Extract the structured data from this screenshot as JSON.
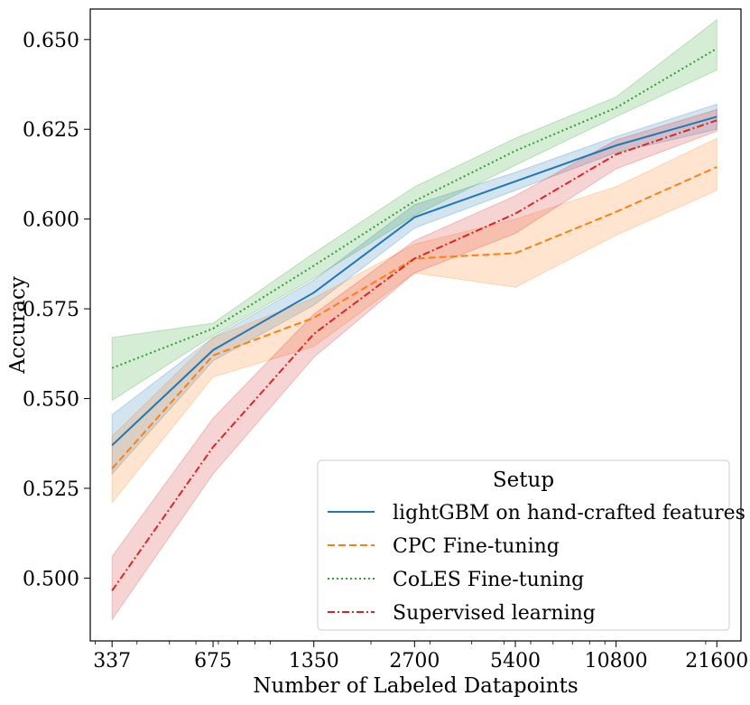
{
  "chart_data": {
    "type": "line",
    "xlabel": "Number of Labeled Datapoints",
    "ylabel": "Accuracy",
    "x_scale": "log",
    "x": [
      337,
      675,
      1350,
      2700,
      5400,
      10800,
      21600
    ],
    "x_tick_labels": [
      "337",
      "675",
      "1350",
      "2700",
      "5400",
      "10800",
      "21600"
    ],
    "xlim": [
      290,
      25500
    ],
    "ylim": [
      0.4825,
      0.6585
    ],
    "y_ticks": [
      0.5,
      0.525,
      0.55,
      0.575,
      0.6,
      0.625,
      0.65
    ],
    "y_tick_labels": [
      "0.500",
      "0.525",
      "0.550",
      "0.575",
      "0.600",
      "0.625",
      "0.650"
    ],
    "grid": false,
    "legend": {
      "title": "Setup",
      "placement": "lower-right"
    },
    "series": [
      {
        "name": "lightGBM on hand-crafted features",
        "color": "#1f77b4",
        "line_style": "solid",
        "values": [
          0.537,
          0.5635,
          0.5795,
          0.6005,
          0.6105,
          0.6205,
          0.6285
        ],
        "lower": [
          0.529,
          0.5605,
          0.576,
          0.5975,
          0.608,
          0.6185,
          0.625
        ],
        "upper": [
          0.5455,
          0.567,
          0.583,
          0.604,
          0.613,
          0.623,
          0.632
        ]
      },
      {
        "name": "CPC Fine-tuning",
        "color": "#ff7f0e",
        "line_style": "dashed",
        "values": [
          0.5305,
          0.562,
          0.5725,
          0.589,
          0.5905,
          0.602,
          0.6145
        ],
        "lower": [
          0.521,
          0.556,
          0.5645,
          0.585,
          0.581,
          0.5955,
          0.608
        ],
        "upper": [
          0.5395,
          0.567,
          0.578,
          0.593,
          0.6,
          0.609,
          0.6225
        ]
      },
      {
        "name": "CoLES Fine-tuning",
        "color": "#2ca02c",
        "line_style": "dotted",
        "values": [
          0.5585,
          0.5695,
          0.587,
          0.605,
          0.619,
          0.631,
          0.6475
        ],
        "lower": [
          0.5495,
          0.5675,
          0.5835,
          0.601,
          0.615,
          0.6285,
          0.6415
        ],
        "upper": [
          0.567,
          0.571,
          0.5905,
          0.609,
          0.6225,
          0.634,
          0.6555
        ]
      },
      {
        "name": "Supervised learning",
        "color": "#d62728",
        "line_style": "dashdot",
        "values": [
          0.4965,
          0.5365,
          0.568,
          0.589,
          0.6015,
          0.618,
          0.6275
        ],
        "lower": [
          0.4885,
          0.529,
          0.5615,
          0.585,
          0.596,
          0.614,
          0.6245
        ],
        "upper": [
          0.506,
          0.5445,
          0.5735,
          0.594,
          0.6065,
          0.622,
          0.6305
        ]
      }
    ]
  }
}
